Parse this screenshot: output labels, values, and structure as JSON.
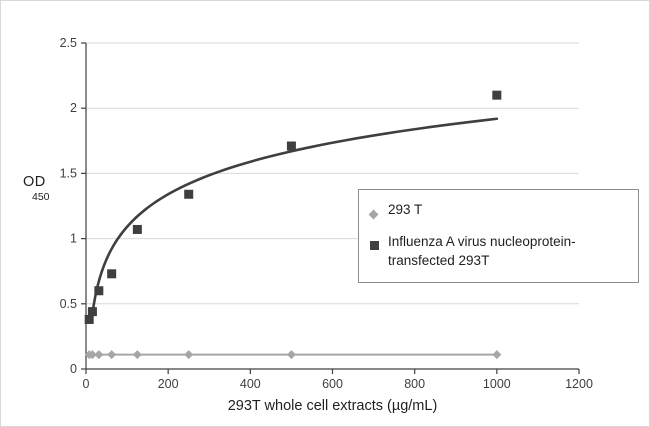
{
  "chart_data": {
    "type": "scatter",
    "xlabel": "293T whole cell extracts (µg/mL)",
    "ylabel_main": "OD",
    "ylabel_sub": "450",
    "xlim": [
      0,
      1200
    ],
    "ylim": [
      0,
      2.5
    ],
    "x_ticks": [
      0,
      200,
      400,
      600,
      800,
      1000,
      1200
    ],
    "y_ticks": [
      0,
      0.5,
      1,
      1.5,
      2,
      2.5
    ],
    "grid": "horizontal",
    "legend_position": "middle-right",
    "colors": {
      "grid": "#d9d9d9",
      "axis": "#404040",
      "text": "#404040"
    },
    "series": [
      {
        "name": "293 T",
        "marker": "diamond",
        "color": "#a6a6a6",
        "line": "straight",
        "x": [
          7.8,
          15.6,
          31.25,
          62.5,
          125,
          250,
          500,
          1000
        ],
        "y": [
          0.11,
          0.11,
          0.11,
          0.11,
          0.11,
          0.11,
          0.11,
          0.11
        ]
      },
      {
        "name": "Influenza A virus nucleoprotein-transfected 293T",
        "marker": "square",
        "color": "#3f3f3f",
        "line": "log-fit",
        "fit_range": [
          15,
          1000
        ],
        "x": [
          7.8,
          15.6,
          31.25,
          62.5,
          125,
          250,
          500,
          1000
        ],
        "y": [
          0.38,
          0.44,
          0.6,
          0.73,
          1.07,
          1.34,
          1.71,
          2.1
        ]
      }
    ]
  }
}
